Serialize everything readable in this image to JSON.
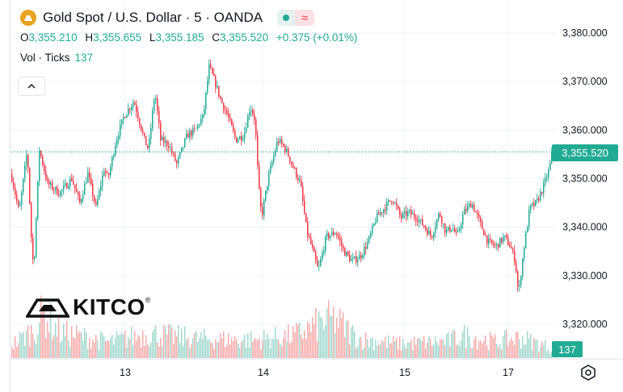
{
  "header": {
    "title": "Gold Spot / U.S. Dollar · 5 · OANDA",
    "status_icons": [
      "market-open-dot-icon",
      "wave-icon"
    ]
  },
  "ohlc": {
    "o_key": "O",
    "o_val": "3,355.210",
    "h_key": "H",
    "h_val": "3,355.655",
    "l_key": "L",
    "l_val": "3,355.185",
    "c_key": "C",
    "c_val": "3,355.520",
    "change": "+0.375 (+0.01%)"
  },
  "volume": {
    "label": "Vol · Ticks",
    "value": "137"
  },
  "price_tag": "3,355.520",
  "volume_tag": "137",
  "logo": {
    "text": "KITCO",
    "reg": "®"
  },
  "colors": {
    "up": "#22ab94",
    "down": "#f23645",
    "up_vol": "#9fd8cd",
    "down_vol": "#f7a9a7",
    "grid": "#f0f3fa"
  },
  "chart_data": {
    "type": "candlestick",
    "y_ticks": [
      "3,380.000",
      "3,370.000",
      "3,360.000",
      "3,350.000",
      "3,340.000",
      "3,330.000",
      "3,320.000"
    ],
    "ylim": [
      3316,
      3384
    ],
    "x_ticks": [
      "13",
      "14",
      "15",
      "17"
    ],
    "last_price": 3355.52,
    "last_volume": 137,
    "series": [
      {
        "name": "price",
        "anchors": [
          [
            0,
            3351
          ],
          [
            10,
            3343
          ],
          [
            20,
            3356
          ],
          [
            25,
            3338
          ],
          [
            28,
            3331
          ],
          [
            35,
            3356
          ],
          [
            45,
            3349
          ],
          [
            60,
            3347
          ],
          [
            75,
            3350
          ],
          [
            85,
            3345
          ],
          [
            95,
            3351
          ],
          [
            105,
            3344
          ],
          [
            115,
            3352
          ],
          [
            120,
            3350
          ],
          [
            130,
            3358
          ],
          [
            140,
            3363
          ],
          [
            152,
            3366
          ],
          [
            165,
            3358
          ],
          [
            170,
            3356
          ],
          [
            178,
            3368
          ],
          [
            185,
            3358
          ],
          [
            195,
            3357
          ],
          [
            205,
            3353
          ],
          [
            218,
            3359
          ],
          [
            228,
            3360
          ],
          [
            238,
            3363
          ],
          [
            245,
            3373
          ],
          [
            252,
            3370
          ],
          [
            260,
            3366
          ],
          [
            268,
            3363
          ],
          [
            278,
            3358
          ],
          [
            288,
            3359
          ],
          [
            296,
            3365
          ],
          [
            302,
            3362
          ],
          [
            306,
            3349
          ],
          [
            310,
            3342
          ],
          [
            318,
            3350
          ],
          [
            330,
            3358
          ],
          [
            340,
            3356
          ],
          [
            350,
            3352
          ],
          [
            358,
            3349
          ],
          [
            366,
            3339
          ],
          [
            372,
            3336
          ],
          [
            380,
            3331
          ],
          [
            390,
            3338
          ],
          [
            402,
            3339
          ],
          [
            412,
            3335
          ],
          [
            422,
            3333
          ],
          [
            432,
            3334
          ],
          [
            442,
            3337
          ],
          [
            452,
            3342
          ],
          [
            462,
            3344
          ],
          [
            472,
            3346
          ],
          [
            482,
            3342
          ],
          [
            492,
            3343
          ],
          [
            502,
            3342
          ],
          [
            512,
            3340
          ],
          [
            520,
            3338
          ],
          [
            530,
            3343
          ],
          [
            538,
            3339
          ],
          [
            546,
            3340
          ],
          [
            552,
            3338
          ],
          [
            560,
            3343
          ],
          [
            570,
            3345
          ],
          [
            580,
            3341
          ],
          [
            590,
            3337
          ],
          [
            600,
            3336
          ],
          [
            610,
            3338
          ],
          [
            618,
            3336
          ],
          [
            624,
            3333
          ],
          [
            628,
            3326
          ],
          [
            634,
            3335
          ],
          [
            642,
            3344
          ],
          [
            650,
            3345
          ],
          [
            658,
            3348
          ],
          [
            666,
            3352
          ],
          [
            670,
            3355.52
          ]
        ]
      },
      {
        "name": "volume",
        "profile": [
          [
            0,
            20
          ],
          [
            30,
            45
          ],
          [
            40,
            70
          ],
          [
            60,
            40
          ],
          [
            120,
            25
          ],
          [
            170,
            38
          ],
          [
            230,
            30
          ],
          [
            300,
            28
          ],
          [
            350,
            35
          ],
          [
            385,
            55
          ],
          [
            400,
            60
          ],
          [
            430,
            30
          ],
          [
            480,
            22
          ],
          [
            540,
            26
          ],
          [
            560,
            35
          ],
          [
            600,
            25
          ],
          [
            630,
            32
          ],
          [
            670,
            15
          ]
        ]
      }
    ]
  }
}
